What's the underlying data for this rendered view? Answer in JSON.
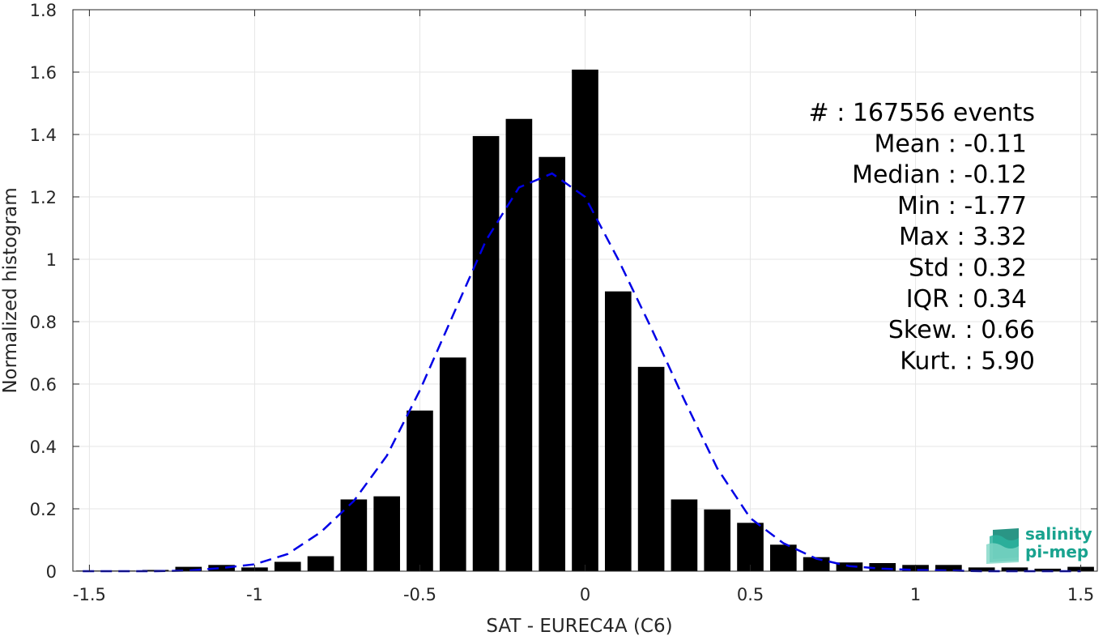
{
  "chart_data": {
    "type": "bar",
    "xlabel": "SAT - EUREC4A (C6)",
    "ylabel": "Normalized histogram",
    "xlim": [
      -1.55,
      1.55
    ],
    "ylim": [
      0,
      1.8
    ],
    "xticks": [
      "-1.5",
      "-1",
      "-0.5",
      "0",
      "0.5",
      "1",
      "1.5"
    ],
    "xtick_values": [
      -1.5,
      -1,
      -0.5,
      0,
      0.5,
      1,
      1.5
    ],
    "yticks": [
      "0",
      "0.2",
      "0.4",
      "0.6",
      "0.8",
      "1",
      "1.2",
      "1.4",
      "1.6",
      "1.8"
    ],
    "ytick_values": [
      0,
      0.2,
      0.4,
      0.6,
      0.8,
      1.0,
      1.2,
      1.4,
      1.6,
      1.8
    ],
    "grid": true,
    "bar_color": "#000000",
    "bins": [
      -1.5,
      -1.4,
      -1.3,
      -1.2,
      -1.1,
      -1.0,
      -0.9,
      -0.8,
      -0.7,
      -0.6,
      -0.5,
      -0.4,
      -0.3,
      -0.2,
      -0.1,
      0.0,
      0.1,
      0.2,
      0.3,
      0.4,
      0.5,
      0.6,
      0.7,
      0.8,
      0.9,
      1.0,
      1.1,
      1.2,
      1.3,
      1.4,
      1.5
    ],
    "values": [
      0.002,
      0.002,
      0.004,
      0.014,
      0.02,
      0.012,
      0.03,
      0.048,
      0.23,
      0.24,
      0.515,
      0.685,
      1.395,
      1.45,
      1.328,
      1.608,
      0.897,
      0.655,
      0.23,
      0.198,
      0.155,
      0.085,
      0.045,
      0.028,
      0.026,
      0.02,
      0.02,
      0.012,
      0.012,
      0.008,
      0.014
    ],
    "fit_curve": {
      "style": "dashed",
      "color": "#0000e6",
      "x": [
        -1.52,
        -1.4,
        -1.3,
        -1.2,
        -1.1,
        -1.0,
        -0.9,
        -0.8,
        -0.7,
        -0.6,
        -0.5,
        -0.4,
        -0.3,
        -0.2,
        -0.1,
        0.0,
        0.1,
        0.2,
        0.3,
        0.4,
        0.5,
        0.6,
        0.7,
        0.8,
        0.9,
        1.0,
        1.1,
        1.2,
        1.3,
        1.4,
        1.5
      ],
      "y": [
        0.0,
        0.0,
        0.0,
        0.002,
        0.01,
        0.022,
        0.055,
        0.125,
        0.225,
        0.37,
        0.58,
        0.82,
        1.06,
        1.23,
        1.275,
        1.2,
        1.0,
        0.78,
        0.55,
        0.33,
        0.17,
        0.09,
        0.04,
        0.016,
        0.008,
        0.004,
        0.002,
        0.0,
        0.0,
        0.0,
        0.0
      ]
    },
    "stats": [
      "#  : 167556 events",
      "Mean : -0.11",
      "Median : -0.12",
      "Min : -1.77",
      "Max : 3.32",
      "Std : 0.32",
      "IQR : 0.34",
      "Skew. : 0.66",
      "Kurt. : 5.90"
    ]
  },
  "logo": {
    "line1": "salinity",
    "line2": "pi-mep",
    "color": "#19a38f"
  }
}
